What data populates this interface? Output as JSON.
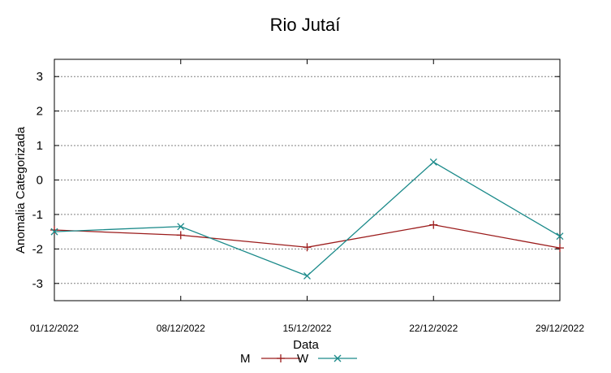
{
  "chart_data": {
    "type": "line",
    "title": "Rio Jutaí",
    "xlabel": "Data",
    "ylabel": "Anomalia Categorizada",
    "categories": [
      "01/12/2022",
      "08/12/2022",
      "15/12/2022",
      "22/12/2022",
      "29/12/2022"
    ],
    "yticks": [
      -3,
      -2,
      -1,
      0,
      1,
      2,
      3
    ],
    "ylim": [
      -3.5,
      3.5
    ],
    "grid": true,
    "legend_position": "bottom-center",
    "series": [
      {
        "name": "M",
        "values": [
          -1.45,
          -1.6,
          -1.95,
          -1.3,
          -1.97
        ],
        "color": "#9b1b1b",
        "marker": "plus"
      },
      {
        "name": "W",
        "values": [
          -1.5,
          -1.35,
          -2.78,
          0.52,
          -1.63
        ],
        "color": "#1b8a8a",
        "marker": "cross"
      }
    ]
  }
}
